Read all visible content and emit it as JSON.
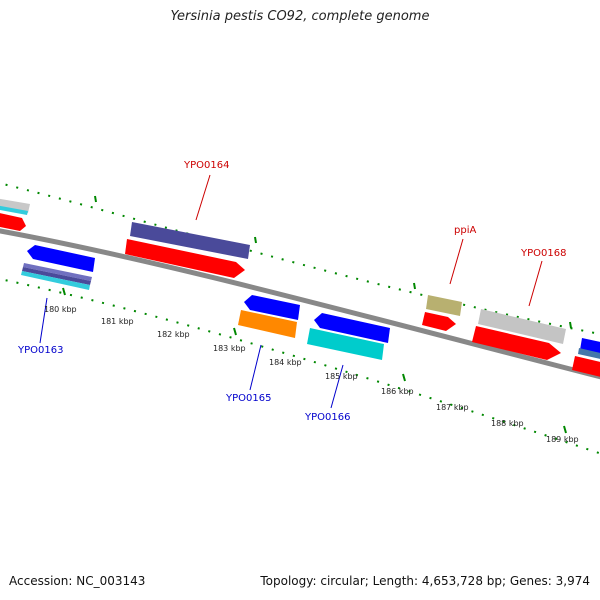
{
  "title": "Yersinia pestis CO92, complete genome",
  "footer": {
    "accession": "Accession: NC_003143",
    "summary": "Topology: circular; Length: 4,653,728 bp; Genes: 3,974"
  },
  "ticks": [
    "180 kbp",
    "181 kbp",
    "182 kbp",
    "183 kbp",
    "184 kbp",
    "185 kbp",
    "186 kbp",
    "187 kbp",
    "188 kbp",
    "189 kbp"
  ],
  "gene_labels": [
    {
      "text": "YPO0164",
      "strand": "forward",
      "color": "#cc0000"
    },
    {
      "text": "ppiA",
      "strand": "forward",
      "color": "#cc0000"
    },
    {
      "text": "YPO0168",
      "strand": "forward",
      "color": "#cc0000"
    },
    {
      "text": "YPO0163",
      "strand": "reverse",
      "color": "#0000cc"
    },
    {
      "text": "YPO0165",
      "strand": "reverse",
      "color": "#0000cc"
    },
    {
      "text": "YPO0166",
      "strand": "reverse",
      "color": "#0000cc"
    }
  ],
  "colors": {
    "cds_forward": "#ff0000",
    "cds_reverse": "#0000ff",
    "forward_label": "#cc0000",
    "reverse_label": "#0000cc",
    "backbone": "#888888",
    "ticks": "#008800"
  }
}
